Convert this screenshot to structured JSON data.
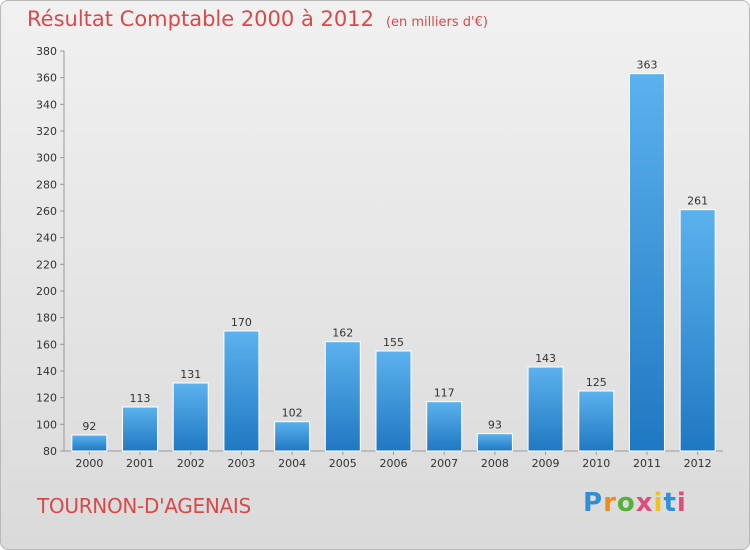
{
  "chart_data": {
    "type": "bar",
    "title": "Résultat Comptable 2000 à 2012",
    "unit_label": "(en milliers d'€)",
    "categories": [
      "2000",
      "2001",
      "2002",
      "2003",
      "2004",
      "2005",
      "2006",
      "2007",
      "2008",
      "2009",
      "2010",
      "2011",
      "2012"
    ],
    "values": [
      92,
      113,
      131,
      170,
      102,
      162,
      155,
      117,
      93,
      143,
      125,
      363,
      261
    ],
    "ylim": [
      80,
      380
    ],
    "yticks": [
      80,
      100,
      120,
      140,
      160,
      180,
      200,
      220,
      240,
      260,
      280,
      300,
      320,
      340,
      360,
      380
    ],
    "grid": false,
    "xlabel": "",
    "ylabel": ""
  },
  "place": "TOURNON-D'AGENAIS",
  "brand": {
    "letters": [
      "P",
      "r",
      "o",
      "x",
      "i",
      "t",
      "i"
    ],
    "colors": [
      "#2f8fd6",
      "#f08a1c",
      "#56b13b",
      "#e34b7b",
      "#f1c21b",
      "#2f8fd6",
      "#e34b7b"
    ]
  },
  "colors": {
    "title": "#d84a4a",
    "bar_light": "#5cb2ee",
    "bar_dark": "#1f78c2"
  }
}
